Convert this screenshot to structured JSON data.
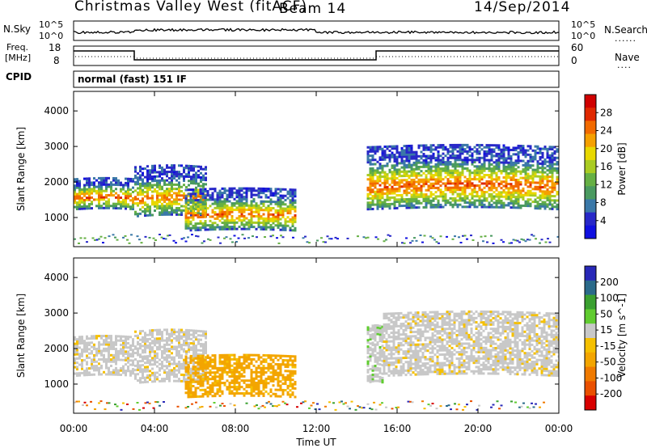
{
  "header": {
    "station": "Christmas Valley West (fitACF)",
    "beam": "Beam 14",
    "date": "14/Sep/2014"
  },
  "noise_panel": {
    "left_label": "N.Sky",
    "left_ticks": [
      "10^5",
      "10^0"
    ],
    "right_ticks": [
      "10^5",
      "10^0"
    ],
    "right_label": "N.Search"
  },
  "freq_panel": {
    "left_label_1": "Freq.",
    "left_label_2": "[MHz]",
    "left_ticks": [
      "18",
      "8"
    ],
    "right_ticks": [
      "60",
      "0"
    ],
    "right_label": "Nave"
  },
  "cpid": {
    "label": "CPID",
    "value": "normal (fast) 151 IF"
  },
  "colors": {
    "power": [
      "#1010e0",
      "#2828c8",
      "#3a78a8",
      "#4a9a60",
      "#66b044",
      "#aacc22",
      "#e8d800",
      "#f5a000",
      "#f26a00",
      "#e02800",
      "#d00000"
    ],
    "velocity": [
      "#d80000",
      "#ea5000",
      "#f07a00",
      "#f3a500",
      "#f5c000",
      "#c8c8c8",
      "#60cc30",
      "#3aa030",
      "#2a6a8a",
      "#2828b8"
    ]
  },
  "chart_data": [
    {
      "type": "heatmap",
      "title": "Power",
      "ylabel": "Slant Range [km]",
      "ylim": [
        180,
        4550
      ],
      "yticks": [
        1000,
        2000,
        3000,
        4000
      ],
      "xlim": [
        0,
        24
      ],
      "colorbar": {
        "label": "Power [dB]",
        "ticks": [
          "4",
          "8",
          "12",
          "16",
          "20",
          "24",
          "28"
        ],
        "range": [
          0,
          32
        ]
      },
      "echo_regions": [
        {
          "t0": 0.0,
          "t1": 3.0,
          "r0": 1200,
          "r1": 2100,
          "peak_db": 27
        },
        {
          "t0": 3.0,
          "t1": 6.5,
          "r0": 1000,
          "r1": 2400,
          "peak_db": 25
        },
        {
          "t0": 5.5,
          "t1": 11.0,
          "r0": 600,
          "r1": 1800,
          "peak_db": 26
        },
        {
          "t0": 14.5,
          "t1": 24.0,
          "r0": 1200,
          "r1": 3000,
          "peak_db": 27
        }
      ]
    },
    {
      "type": "heatmap",
      "title": "Velocity",
      "ylabel": "Slant Range [km]",
      "xlabel": "Time UT",
      "ylim": [
        180,
        4550
      ],
      "yticks": [
        1000,
        2000,
        3000,
        4000
      ],
      "xlim": [
        0,
        24
      ],
      "xticks": [
        "00:00",
        "04:00",
        "08:00",
        "12:00",
        "16:00",
        "20:00",
        "00:00"
      ],
      "colorbar": {
        "label": "Velocity [m s^-1]",
        "ticks": [
          "200",
          "100",
          "50",
          "15",
          "-15",
          "-50",
          "-100",
          "-200"
        ],
        "range": [
          -250,
          250
        ]
      },
      "echo_regions": [
        {
          "t0": 0.0,
          "t1": 3.0,
          "r0": 1200,
          "r1": 2300,
          "vel": 0
        },
        {
          "t0": 3.0,
          "t1": 6.5,
          "r0": 1000,
          "r1": 2500,
          "vel": 0
        },
        {
          "t0": 5.5,
          "t1": 11.0,
          "r0": 600,
          "r1": 1800,
          "vel": -70
        },
        {
          "t0": 14.5,
          "t1": 15.3,
          "r0": 1000,
          "r1": 2600,
          "vel": 40
        },
        {
          "t0": 15.3,
          "t1": 24.0,
          "r0": 1200,
          "r1": 3000,
          "vel": 0
        }
      ]
    }
  ]
}
